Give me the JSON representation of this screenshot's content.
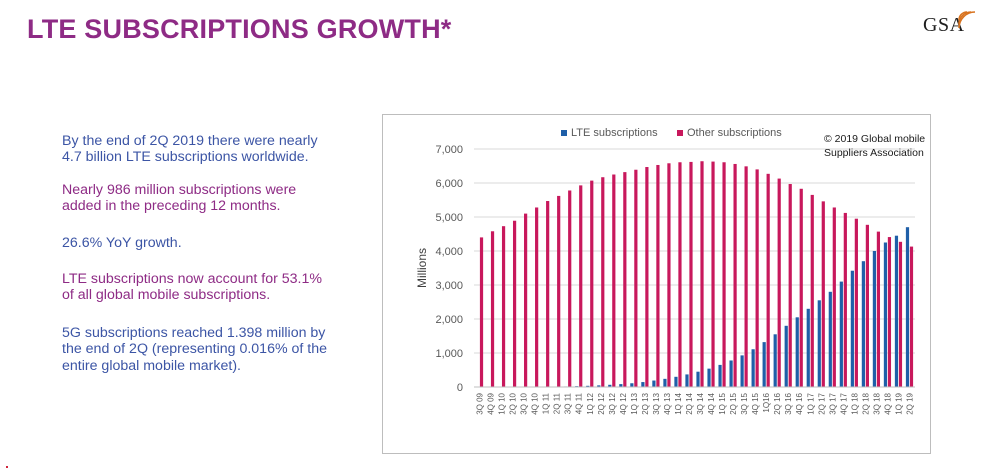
{
  "header": {
    "title": "LTE SUBSCRIPTIONS GROWTH*",
    "logo_text": "GSA"
  },
  "bullets": [
    {
      "text": "By the end of 2Q 2019 there were nearly 4.7 billion LTE subscriptions worldwide.",
      "color": "#3c55a5"
    },
    {
      "text": "Nearly 986 million subscriptions were added in the preceding 12 months.",
      "color": "#8e2b85"
    },
    {
      "text": "26.6% YoY growth.",
      "color": "#3c55a5"
    },
    {
      "text": "LTE subscriptions now account for 53.1% of all global mobile subscriptions.",
      "color": "#8e2b85"
    },
    {
      "text": "5G subscriptions reached 1.398 million by the end of 2Q (representing 0.016% of the entire global mobile market).",
      "color": "#3c55a5"
    }
  ],
  "chart_data": {
    "type": "bar",
    "title": "",
    "xlabel": "",
    "ylabel": "Millions",
    "ylim": [
      0,
      7000
    ],
    "yticks": [
      0,
      1000,
      2000,
      3000,
      4000,
      5000,
      6000,
      7000
    ],
    "ytick_labels": [
      "0",
      "1,000",
      "2,000",
      "3,000",
      "4,000",
      "5,000",
      "6,000",
      "7,000"
    ],
    "grid": true,
    "legend_position": "top",
    "annotation": "© 2019 Global mobile Suppliers Association",
    "categories": [
      "3Q 09",
      "4Q 09",
      "1Q 10",
      "2Q 10",
      "3Q 10",
      "4Q 10",
      "1Q 11",
      "2Q 11",
      "3Q 11",
      "4Q 11",
      "1Q 12",
      "2Q 12",
      "3Q 12",
      "4Q 12",
      "1Q 13",
      "2Q 13",
      "3Q 13",
      "4Q 13",
      "1Q 14",
      "2Q 14",
      "3Q 14",
      "4Q 14",
      "1Q 15",
      "2Q 15",
      "3Q 15",
      "4Q 15",
      "1Q16",
      "2Q 16",
      "3Q 16",
      "4Q 16",
      "1Q 17",
      "2Q 17",
      "3Q 17",
      "4Q 17",
      "1Q 18",
      "2Q 18",
      "3Q 18",
      "4Q 18",
      "1Q 19",
      "2Q 19"
    ],
    "series": [
      {
        "name": "LTE subscriptions",
        "color": "#1f5fa8",
        "values": [
          0,
          0,
          0,
          1,
          2,
          4,
          7,
          11,
          16,
          25,
          35,
          48,
          65,
          85,
          110,
          145,
          190,
          240,
          300,
          370,
          450,
          540,
          650,
          780,
          930,
          1110,
          1320,
          1550,
          1800,
          2050,
          2300,
          2550,
          2800,
          3100,
          3420,
          3700,
          4000,
          4250,
          4450,
          4700
        ]
      },
      {
        "name": "Other subscriptions",
        "color": "#c8185c",
        "values": [
          4400,
          4580,
          4730,
          4890,
          5100,
          5280,
          5470,
          5620,
          5780,
          5930,
          6070,
          6170,
          6250,
          6320,
          6390,
          6470,
          6530,
          6580,
          6610,
          6620,
          6640,
          6630,
          6610,
          6560,
          6490,
          6400,
          6270,
          6130,
          5970,
          5830,
          5650,
          5460,
          5280,
          5120,
          4950,
          4770,
          4570,
          4410,
          4270,
          4130
        ]
      }
    ]
  }
}
